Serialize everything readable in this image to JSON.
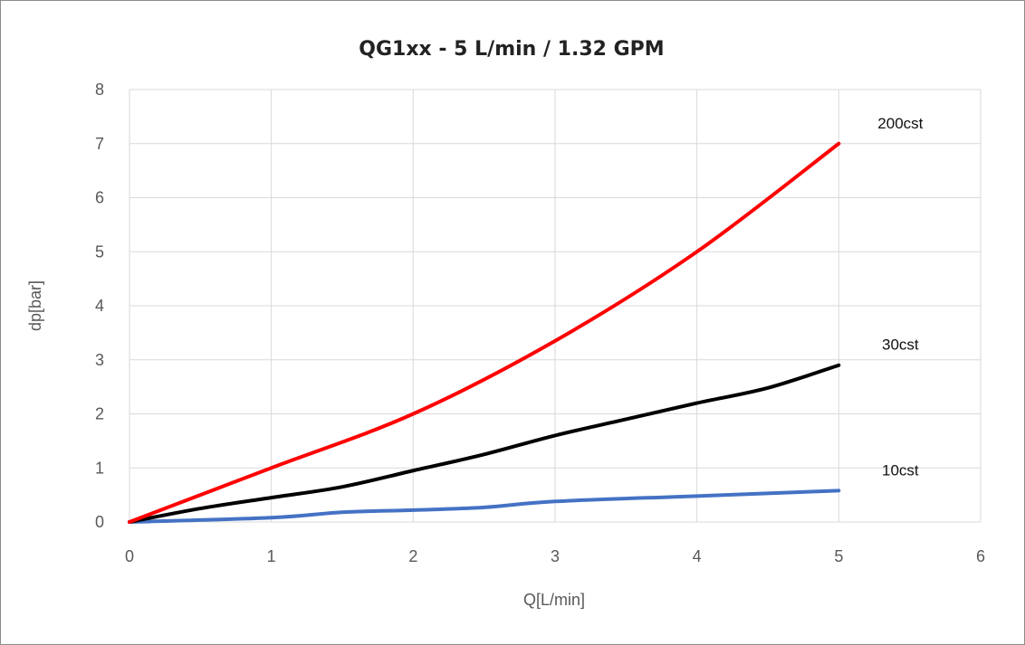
{
  "chart_data": {
    "type": "line",
    "title": "QG1xx - 5 L/min / 1.32 GPM",
    "xlabel": "Q[L/min]",
    "ylabel": "dp[bar]",
    "xlim": [
      0,
      6
    ],
    "ylim": [
      0,
      8
    ],
    "xticks": [
      "0",
      "1",
      "2",
      "3",
      "4",
      "5",
      "6"
    ],
    "yticks": [
      "0",
      "1",
      "2",
      "3",
      "4",
      "5",
      "6",
      "7",
      "8"
    ],
    "grid": true,
    "legend": "none",
    "series": [
      {
        "name": "200cst",
        "color": "#ff0000",
        "x": [
          0,
          1,
          2,
          3,
          4,
          5
        ],
        "y": [
          0,
          1,
          2,
          3.35,
          5,
          7
        ]
      },
      {
        "name": "30cst",
        "color": "#000000",
        "x": [
          0,
          0.5,
          1,
          1.5,
          2,
          2.5,
          3,
          3.5,
          4,
          4.5,
          5
        ],
        "y": [
          0,
          0.25,
          0.45,
          0.65,
          0.95,
          1.25,
          1.6,
          1.9,
          2.2,
          2.48,
          2.9
        ]
      },
      {
        "name": "10cst",
        "color": "#4472c4",
        "x": [
          0,
          1,
          1.5,
          2,
          2.5,
          3,
          4,
          5
        ],
        "y": [
          0,
          0.08,
          0.18,
          0.22,
          0.27,
          0.38,
          0.48,
          0.58
        ]
      }
    ]
  }
}
